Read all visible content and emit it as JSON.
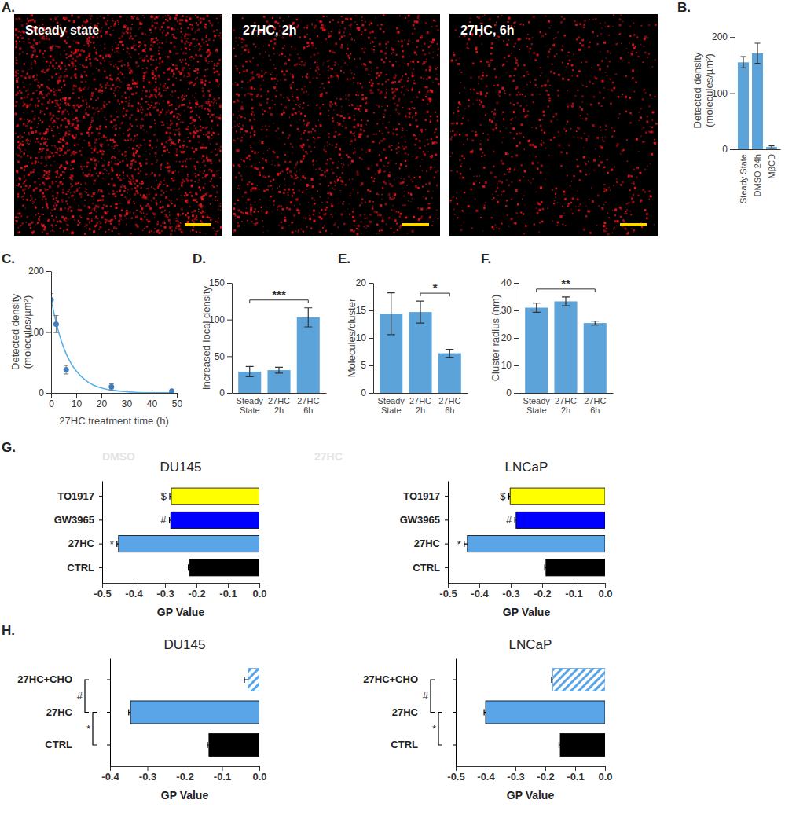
{
  "chart_data": [
    {
      "type": "image",
      "panel_label": "A.",
      "images": [
        "Steady state",
        "27HC, 2h",
        "27HC, 6h"
      ]
    },
    {
      "type": "bar",
      "panel_label": "B.",
      "categories": [
        "Steady State",
        "DMSO 24h",
        "MβCD"
      ],
      "values": [
        155,
        171,
        4
      ],
      "errors": [
        10,
        18,
        2
      ],
      "color": "#5ba3d9",
      "y_label": "Detected density (molecules/µm²)",
      "ylim": [
        0,
        210
      ],
      "yticks": [
        0,
        100,
        200
      ]
    },
    {
      "type": "scatter",
      "panel_label": "C.",
      "series": [
        {
          "type": "scatter",
          "color": "#3f7fc0",
          "x": [
            0,
            2,
            6,
            24,
            48
          ],
          "values": [
            153,
            113,
            38,
            10,
            3
          ],
          "errors": [
            10,
            14,
            7,
            5,
            1
          ]
        },
        {
          "type": "line",
          "color": "#5ab0e8",
          "x": [
            0,
            2,
            4,
            6,
            8,
            10,
            12,
            15,
            20,
            25,
            30,
            40,
            48
          ],
          "values": [
            153,
            116,
            86,
            64,
            48,
            36,
            27,
            17,
            8,
            4,
            2,
            0.3,
            0.1
          ]
        }
      ],
      "x_label": "27HC treatment time (h)",
      "y_label": "Detected density (molecules/µm²)",
      "xlim": [
        0,
        50
      ],
      "xticks": [
        0,
        10,
        20,
        30,
        40,
        50
      ],
      "ylim": [
        0,
        200
      ],
      "yticks": [
        0,
        100,
        200
      ]
    },
    {
      "type": "bar",
      "panel_label": "D.",
      "categories": [
        "Steady State",
        "27HC 2h",
        "27HC 6h"
      ],
      "values": [
        29,
        31,
        103
      ],
      "errors": [
        7,
        4,
        13
      ],
      "color": "#5ba3d9",
      "y_label": "Increased local density",
      "ylim": [
        0,
        150
      ],
      "yticks": [
        0,
        50,
        100,
        150
      ],
      "annotations": [
        {
          "text": "***",
          "from": 0,
          "to": 2
        }
      ]
    },
    {
      "type": "bar",
      "panel_label": "E.",
      "categories": [
        "Steady State",
        "27HC 2h",
        "27HC 6h"
      ],
      "values": [
        14.4,
        14.7,
        7.2
      ],
      "errors": [
        3.8,
        2,
        0.7
      ],
      "color": "#5ba3d9",
      "y_label": "Molecules/cluster",
      "ylim": [
        0,
        20
      ],
      "yticks": [
        0,
        5,
        10,
        15,
        20
      ],
      "annotations": [
        {
          "text": "*",
          "from": 1,
          "to": 2
        }
      ]
    },
    {
      "type": "bar",
      "panel_label": "F.",
      "categories": [
        "Steady State",
        "27HC 2h",
        "27HC 6h"
      ],
      "values": [
        31,
        33.3,
        25.4
      ],
      "errors": [
        1.7,
        1.6,
        0.7
      ],
      "color": "#5ba3d9",
      "y_label": "Cluster radius (nm)",
      "ylim": [
        0,
        40
      ],
      "yticks": [
        0,
        10,
        20,
        30,
        40
      ],
      "annotations": [
        {
          "text": "**",
          "from": 0,
          "to": 2
        }
      ]
    },
    {
      "type": "bar",
      "orientation": "horizontal",
      "panel_label": "G.",
      "title": "DU145",
      "notes": [
        "DMSO",
        "27HC"
      ],
      "categories": [
        "TO1917",
        "GW3965",
        "27HC",
        "CTRL"
      ],
      "values": [
        -0.28,
        -0.282,
        -0.448,
        -0.222
      ],
      "errors": [
        0.005,
        0.004,
        0.005,
        0.004
      ],
      "colors": [
        "#ffff00",
        "#0000ff",
        "#5aa5e8",
        "#000000"
      ],
      "annotations": [
        "$",
        "#",
        "*",
        null
      ],
      "x_label": "GP Value",
      "xlim": [
        -0.5,
        0
      ],
      "xticks": [
        -0.5,
        -0.4,
        -0.3,
        -0.2,
        -0.1,
        {
          "value": 0,
          "label": "0.0"
        }
      ]
    },
    {
      "type": "bar",
      "orientation": "horizontal",
      "title": "LNCaP",
      "categories": [
        "TO1917",
        "GW3965",
        "27HC",
        "CTRL"
      ],
      "values": [
        -0.302,
        -0.283,
        -0.438,
        -0.188
      ],
      "errors": [
        0.004,
        0.004,
        0.01,
        0.004
      ],
      "colors": [
        "#ffff00",
        "#0000ff",
        "#5aa5e8",
        "#000000"
      ],
      "annotations": [
        "$",
        "#",
        "*",
        null
      ],
      "x_label": "GP Value",
      "xlim": [
        -0.5,
        0
      ],
      "xticks": [
        -0.5,
        -0.4,
        -0.3,
        -0.2,
        -0.1,
        {
          "value": 0,
          "label": "0.0"
        }
      ]
    },
    {
      "type": "bar",
      "orientation": "horizontal",
      "panel_label": "H.",
      "title": "DU145",
      "categories": [
        "27HC+CHO",
        "27HC",
        "CTRL"
      ],
      "values": [
        -0.03,
        -0.345,
        -0.135
      ],
      "errors": [
        0.01,
        0.005,
        0.004
      ],
      "colors": [
        "#5aa5e8",
        "#5aa5e8",
        "#000000"
      ],
      "marker": [
        "hatch",
        null,
        null
      ],
      "annotations": [
        {
          "text": "#",
          "from": 0,
          "to": 1
        },
        {
          "text": "*",
          "from": 1,
          "to": 2
        }
      ],
      "x_label": "GP Value",
      "xlim": [
        -0.4,
        0
      ],
      "xticks": [
        -0.4,
        -0.3,
        -0.2,
        -0.1,
        {
          "value": 0,
          "label": "0.0"
        }
      ]
    },
    {
      "type": "bar",
      "orientation": "horizontal",
      "title": "LNCaP",
      "categories": [
        "27HC+CHO",
        "27HC",
        "CTRL"
      ],
      "values": [
        -0.175,
        -0.4,
        -0.15
      ],
      "errors": [
        0.004,
        0.005,
        0.004
      ],
      "colors": [
        "#5aa5e8",
        "#5aa5e8",
        "#000000"
      ],
      "marker": [
        "hatch",
        null,
        null
      ],
      "annotations": [
        {
          "text": "#",
          "from": 0,
          "to": 1
        },
        {
          "text": "*",
          "from": 1,
          "to": 2
        }
      ],
      "x_label": "GP Value",
      "xlim": [
        -0.5,
        0
      ],
      "xticks": [
        -0.5,
        -0.4,
        -0.3,
        -0.2,
        -0.1,
        {
          "value": 0,
          "label": "0.0"
        }
      ]
    }
  ]
}
